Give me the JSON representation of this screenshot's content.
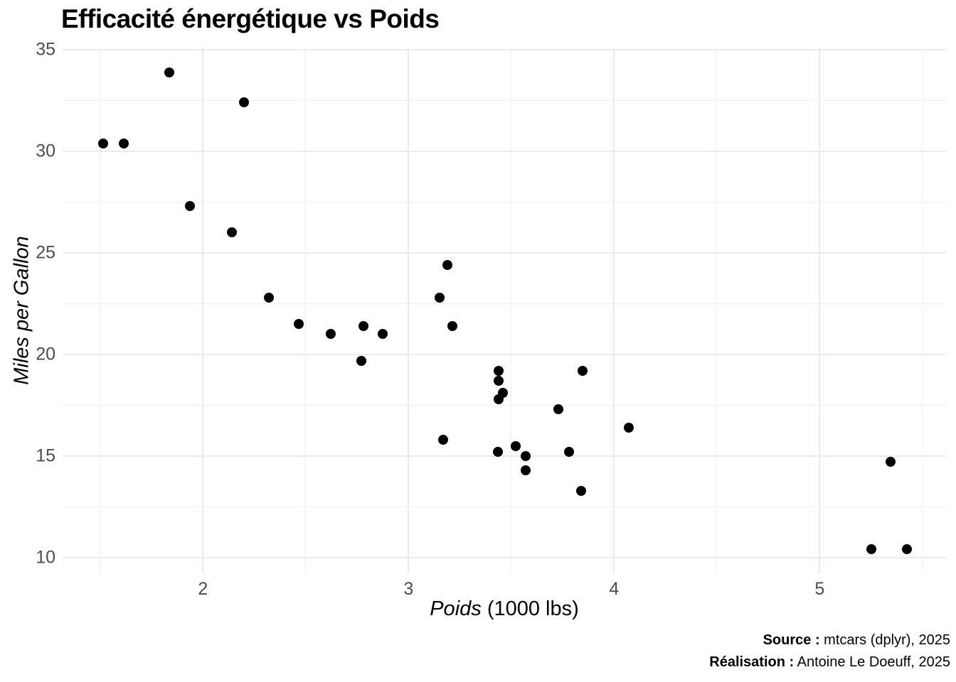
{
  "chart_data": {
    "type": "scatter",
    "title": "Efficacité énergétique vs Poids",
    "xlabel_italic": "Poids",
    "xlabel_rest": " (1000 lbs)",
    "ylabel": "Miles per Gallon",
    "xlim": [
      1.317,
      5.615
    ],
    "ylim": [
      9.225,
      35.075
    ],
    "x_ticks": [
      "2",
      "3",
      "4",
      "5"
    ],
    "x_tick_values": [
      2,
      3,
      4,
      5
    ],
    "x_minor_tick_values": [
      1.5,
      2.5,
      3.5,
      4.5,
      5.5
    ],
    "y_ticks": [
      "10",
      "15",
      "20",
      "25",
      "30",
      "35"
    ],
    "y_tick_values": [
      10,
      15,
      20,
      25,
      30,
      35
    ],
    "y_minor_tick_values": [
      12.5,
      17.5,
      22.5,
      27.5,
      32.5
    ],
    "grid": true,
    "legend": "none",
    "point_color": "#000000",
    "grid_color": "#EBEBEB",
    "tick_label_color": "#4D4D4D",
    "points": [
      [
        2.62,
        21.0
      ],
      [
        2.875,
        21.0
      ],
      [
        2.32,
        22.8
      ],
      [
        3.215,
        21.4
      ],
      [
        3.44,
        18.7
      ],
      [
        3.46,
        18.1
      ],
      [
        3.57,
        14.3
      ],
      [
        3.19,
        24.4
      ],
      [
        3.15,
        22.8
      ],
      [
        3.44,
        19.2
      ],
      [
        3.44,
        17.8
      ],
      [
        4.07,
        16.4
      ],
      [
        3.73,
        17.3
      ],
      [
        3.78,
        15.2
      ],
      [
        5.25,
        10.4
      ],
      [
        5.424,
        10.4
      ],
      [
        5.345,
        14.7
      ],
      [
        2.2,
        32.4
      ],
      [
        1.615,
        30.4
      ],
      [
        1.835,
        33.9
      ],
      [
        2.465,
        21.5
      ],
      [
        3.52,
        15.5
      ],
      [
        3.435,
        15.2
      ],
      [
        3.84,
        13.3
      ],
      [
        3.845,
        19.2
      ],
      [
        1.935,
        27.3
      ],
      [
        2.14,
        26.0
      ],
      [
        1.513,
        30.4
      ],
      [
        3.17,
        15.8
      ],
      [
        2.77,
        19.7
      ],
      [
        3.57,
        15.0
      ],
      [
        2.78,
        21.4
      ]
    ],
    "caption": {
      "lines": [
        {
          "bold": "Source :",
          "text": " mtcars (dplyr), 2025"
        },
        {
          "bold": "Réalisation :",
          "text": " Antoine Le Doeuff, 2025"
        }
      ]
    }
  }
}
